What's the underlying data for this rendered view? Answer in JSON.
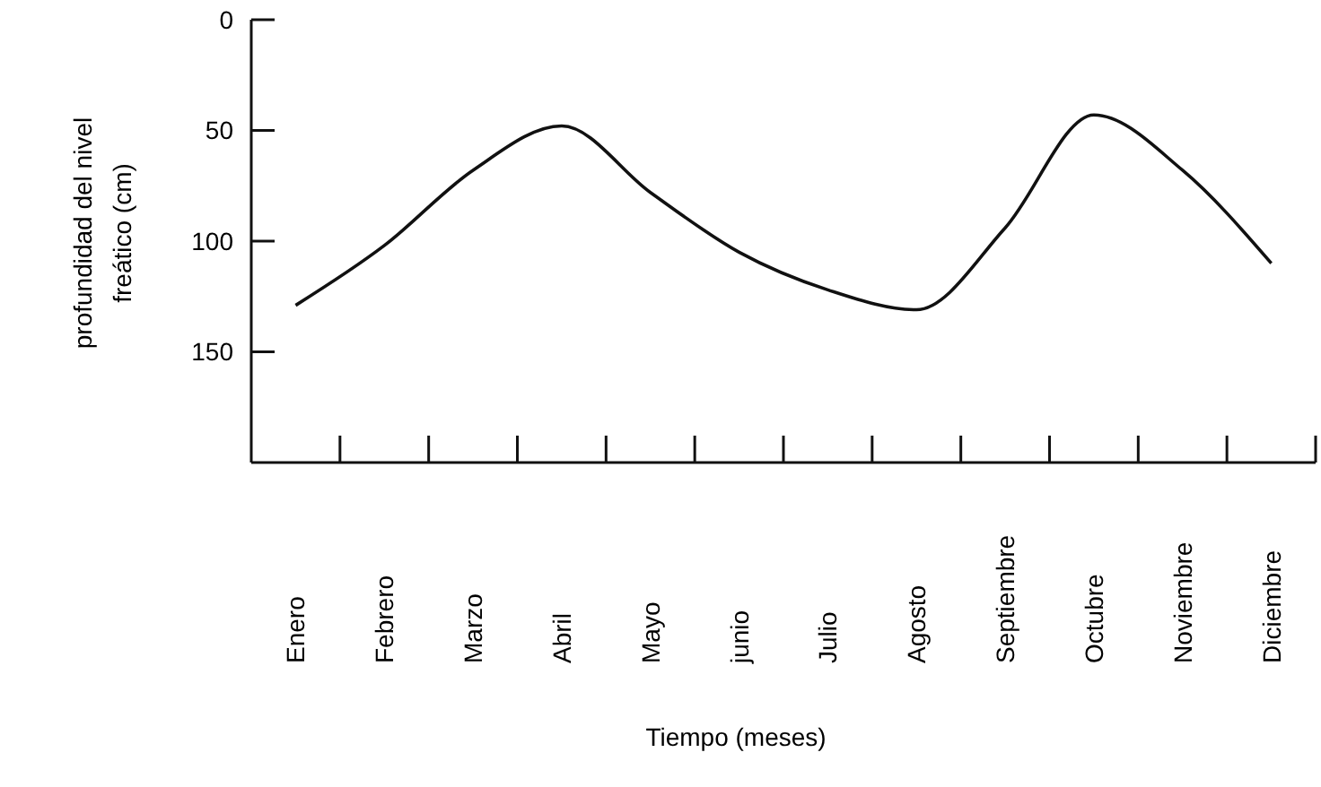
{
  "chart_data": {
    "type": "line",
    "xlabel": "Tiempo (meses)",
    "ylabel": "profundidad del nivel\nfreático (cm)",
    "categories": [
      "Enero",
      "Febrero",
      "Marzo",
      "Abril",
      "Mayo",
      "junio",
      "Julio",
      "Agosto",
      "Septiembre",
      "Octubre",
      "Noviembre",
      "Diciembre"
    ],
    "series": [
      {
        "color": "#111111",
        "values": [
          129,
          102,
          68,
          48,
          78,
          105,
          122,
          131,
          94,
          43,
          68,
          110
        ]
      }
    ],
    "ylim": [
      200,
      0
    ],
    "yticks": [
      0,
      50,
      100,
      150
    ],
    "grid": false,
    "marker": "none",
    "line_style": "solid"
  }
}
